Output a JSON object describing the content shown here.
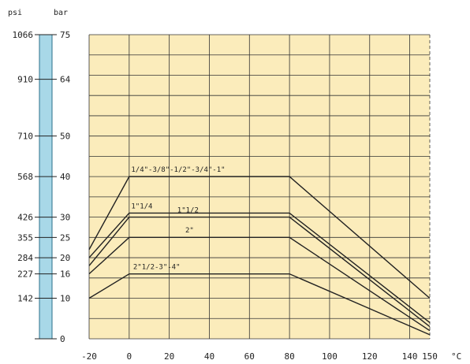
{
  "colors": {
    "plot_background": "#fbecbb",
    "grid": "#333333",
    "pressure_scale_bar": "#a8d8e8",
    "curve": "#222222"
  },
  "chart_data": {
    "type": "line",
    "title": "",
    "xlabel": "°C",
    "x_unit": "°C",
    "xlim": [
      -20,
      150
    ],
    "x_ticks": [
      -20,
      0,
      20,
      40,
      60,
      80,
      100,
      120,
      140,
      150
    ],
    "x_tick_labels": [
      "-20",
      "0",
      "20",
      "40",
      "60",
      "80",
      "100",
      "120",
      "140",
      "150"
    ],
    "ylim_bar": [
      0,
      75
    ],
    "y_unit_bar": "bar",
    "y_unit_psi": "psi",
    "y_ticks": [
      {
        "bar": 75,
        "bar_label": "75",
        "psi_label": "1066"
      },
      {
        "bar": 64,
        "bar_label": "64",
        "psi_label": "910"
      },
      {
        "bar": 50,
        "bar_label": "50",
        "psi_label": "710"
      },
      {
        "bar": 40,
        "bar_label": "40",
        "psi_label": "568"
      },
      {
        "bar": 30,
        "bar_label": "30",
        "psi_label": "426"
      },
      {
        "bar": 25,
        "bar_label": "25",
        "psi_label": "355"
      },
      {
        "bar": 20,
        "bar_label": "20",
        "psi_label": "284"
      },
      {
        "bar": 16,
        "bar_label": "16",
        "psi_label": "227"
      },
      {
        "bar": 10,
        "bar_label": "10",
        "psi_label": "142"
      },
      {
        "bar": 0,
        "bar_label": "0",
        "psi_label": ""
      }
    ],
    "grid": true,
    "series": [
      {
        "name": "1/4\"-3/8\"-1/2\"-3/4\"-1\"",
        "x": [
          -20,
          0,
          80,
          150
        ],
        "y": [
          22,
          40,
          40,
          10
        ]
      },
      {
        "name": "1\"1/4",
        "x": [
          -20,
          0,
          80,
          150
        ],
        "y": [
          20,
          31,
          31,
          4
        ]
      },
      {
        "name": "1\"1/2",
        "x": [
          -20,
          0,
          80,
          150
        ],
        "y": [
          18,
          30,
          30,
          3
        ]
      },
      {
        "name": "2\"",
        "x": [
          -20,
          0,
          80,
          150
        ],
        "y": [
          16,
          25,
          25,
          2
        ]
      },
      {
        "name": "2\"1/2-3\"-4\"",
        "x": [
          -20,
          0,
          80,
          150
        ],
        "y": [
          10,
          16,
          16,
          1
        ]
      }
    ],
    "annotations": [
      {
        "text": "1/4\"-3/8\"-1/2\"-3/4\"-1\"",
        "x": 1,
        "y": 41.2
      },
      {
        "text": "1\"1/4",
        "x": 1,
        "y": 32.2
      },
      {
        "text": "1\"1/2",
        "x": 24,
        "y": 31.2
      },
      {
        "text": "2\"",
        "x": 28,
        "y": 26.2
      },
      {
        "text": "2\"1/2-3\"-4\"",
        "x": 2,
        "y": 17.2
      }
    ]
  }
}
